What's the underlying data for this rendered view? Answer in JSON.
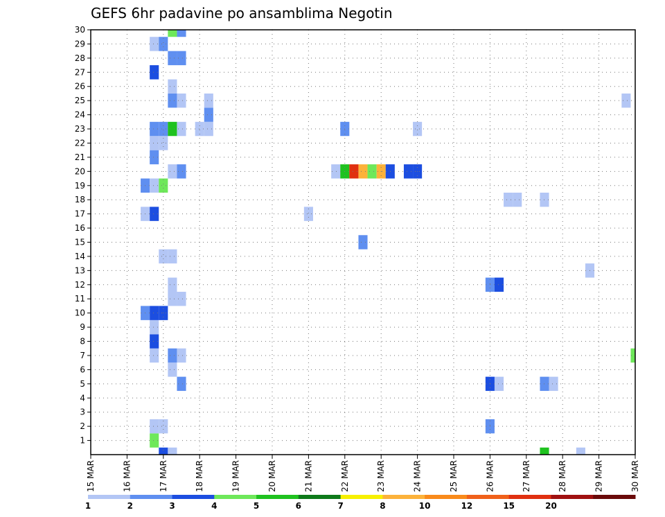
{
  "chart_data": {
    "type": "heatmap",
    "title": "GEFS 6hr padavine po ansamblima Negotin",
    "x_tick_labels": [
      "15 MAR",
      "16 MAR",
      "17 MAR",
      "18 MAR",
      "19 MAR",
      "20 MAR",
      "21 MAR",
      "22 MAR",
      "23 MAR",
      "24 MAR",
      "25 MAR",
      "26 MAR",
      "27 MAR",
      "28 MAR",
      "29 MAR",
      "30 MAR"
    ],
    "y_tick_labels": [
      "1",
      "2",
      "3",
      "4",
      "5",
      "6",
      "7",
      "8",
      "9",
      "10",
      "11",
      "12",
      "13",
      "14",
      "15",
      "16",
      "17",
      "18",
      "19",
      "20",
      "21",
      "22",
      "23",
      "24",
      "25",
      "26",
      "27",
      "28",
      "29",
      "30"
    ],
    "x_range": [
      0,
      60
    ],
    "y_range": [
      0,
      30
    ],
    "grid": true,
    "color_levels": [
      {
        "value": "1",
        "color": "#b3c6f5"
      },
      {
        "value": "2",
        "color": "#5f8ff0"
      },
      {
        "value": "3",
        "color": "#1c4ee0"
      },
      {
        "value": "4",
        "color": "#6ee85a"
      },
      {
        "value": "5",
        "color": "#1fc21f"
      },
      {
        "value": "6",
        "color": "#0e7a1a"
      },
      {
        "value": "7",
        "color": "#f7f000"
      },
      {
        "value": "8",
        "color": "#fcb23a"
      },
      {
        "value": "10",
        "color": "#f98a1a"
      },
      {
        "value": "12",
        "color": "#f0601a"
      },
      {
        "value": "15",
        "color": "#e03010"
      },
      {
        "value": "20",
        "color": "#a01010"
      },
      {
        "value": "",
        "color": "#6a0a0a"
      }
    ],
    "cells": [
      {
        "t": 8,
        "m": 0,
        "c": 2
      },
      {
        "t": 9,
        "m": 0,
        "c": 0
      },
      {
        "t": 50,
        "m": 0,
        "c": 4
      },
      {
        "t": 54,
        "m": 0,
        "c": 0
      },
      {
        "t": 7,
        "m": 1,
        "c": 3
      },
      {
        "t": 7,
        "m": 2,
        "c": 0
      },
      {
        "t": 8,
        "m": 2,
        "c": 0
      },
      {
        "t": 44,
        "m": 2,
        "c": 1
      },
      {
        "t": 10,
        "m": 5,
        "c": 1
      },
      {
        "t": 44,
        "m": 5,
        "c": 2
      },
      {
        "t": 45,
        "m": 5,
        "c": 0
      },
      {
        "t": 50,
        "m": 5,
        "c": 1
      },
      {
        "t": 51,
        "m": 5,
        "c": 0
      },
      {
        "t": 9,
        "m": 6,
        "c": 0
      },
      {
        "t": 7,
        "m": 7,
        "c": 0
      },
      {
        "t": 9,
        "m": 7,
        "c": 1
      },
      {
        "t": 10,
        "m": 7,
        "c": 0
      },
      {
        "t": 60,
        "m": 7,
        "c": 3
      },
      {
        "t": 7,
        "m": 8,
        "c": 2
      },
      {
        "t": 7,
        "m": 9,
        "c": 0
      },
      {
        "t": 6,
        "m": 10,
        "c": 1
      },
      {
        "t": 7,
        "m": 10,
        "c": 2
      },
      {
        "t": 8,
        "m": 10,
        "c": 2
      },
      {
        "t": 9,
        "m": 11,
        "c": 0
      },
      {
        "t": 10,
        "m": 11,
        "c": 0
      },
      {
        "t": 9,
        "m": 12,
        "c": 0
      },
      {
        "t": 44,
        "m": 12,
        "c": 1
      },
      {
        "t": 45,
        "m": 12,
        "c": 2
      },
      {
        "t": 55,
        "m": 13,
        "c": 0
      },
      {
        "t": 8,
        "m": 14,
        "c": 0
      },
      {
        "t": 9,
        "m": 14,
        "c": 0
      },
      {
        "t": 30,
        "m": 15,
        "c": 1
      },
      {
        "t": 6,
        "m": 17,
        "c": 0
      },
      {
        "t": 7,
        "m": 17,
        "c": 2
      },
      {
        "t": 24,
        "m": 17,
        "c": 0
      },
      {
        "t": 46,
        "m": 18,
        "c": 0
      },
      {
        "t": 47,
        "m": 18,
        "c": 0
      },
      {
        "t": 50,
        "m": 18,
        "c": 0
      },
      {
        "t": 6,
        "m": 19,
        "c": 1
      },
      {
        "t": 7,
        "m": 19,
        "c": 0
      },
      {
        "t": 8,
        "m": 19,
        "c": 3
      },
      {
        "t": 9,
        "m": 20,
        "c": 0
      },
      {
        "t": 10,
        "m": 20,
        "c": 1
      },
      {
        "t": 27,
        "m": 20,
        "c": 0
      },
      {
        "t": 28,
        "m": 20,
        "c": 4
      },
      {
        "t": 29,
        "m": 20,
        "c": 10
      },
      {
        "t": 30,
        "m": 20,
        "c": 7
      },
      {
        "t": 31,
        "m": 20,
        "c": 3
      },
      {
        "t": 32,
        "m": 20,
        "c": 7
      },
      {
        "t": 33,
        "m": 20,
        "c": 2
      },
      {
        "t": 35,
        "m": 20,
        "c": 2
      },
      {
        "t": 36,
        "m": 20,
        "c": 2
      },
      {
        "t": 7,
        "m": 21,
        "c": 1
      },
      {
        "t": 7,
        "m": 22,
        "c": 0
      },
      {
        "t": 8,
        "m": 22,
        "c": 0
      },
      {
        "t": 7,
        "m": 23,
        "c": 1
      },
      {
        "t": 8,
        "m": 23,
        "c": 1
      },
      {
        "t": 9,
        "m": 23,
        "c": 4
      },
      {
        "t": 10,
        "m": 23,
        "c": 0
      },
      {
        "t": 12,
        "m": 23,
        "c": 0
      },
      {
        "t": 13,
        "m": 23,
        "c": 0
      },
      {
        "t": 28,
        "m": 23,
        "c": 1
      },
      {
        "t": 36,
        "m": 23,
        "c": 0
      },
      {
        "t": 13,
        "m": 24,
        "c": 1
      },
      {
        "t": 9,
        "m": 25,
        "c": 1
      },
      {
        "t": 10,
        "m": 25,
        "c": 0
      },
      {
        "t": 13,
        "m": 25,
        "c": 0
      },
      {
        "t": 59,
        "m": 25,
        "c": 0
      },
      {
        "t": 9,
        "m": 26,
        "c": 0
      },
      {
        "t": 7,
        "m": 27,
        "c": 2
      },
      {
        "t": 9,
        "m": 28,
        "c": 1
      },
      {
        "t": 10,
        "m": 28,
        "c": 1
      },
      {
        "t": 7,
        "m": 29,
        "c": 0
      },
      {
        "t": 8,
        "m": 29,
        "c": 1
      },
      {
        "t": 9,
        "m": 30,
        "c": 3
      },
      {
        "t": 10,
        "m": 30,
        "c": 1
      }
    ]
  }
}
